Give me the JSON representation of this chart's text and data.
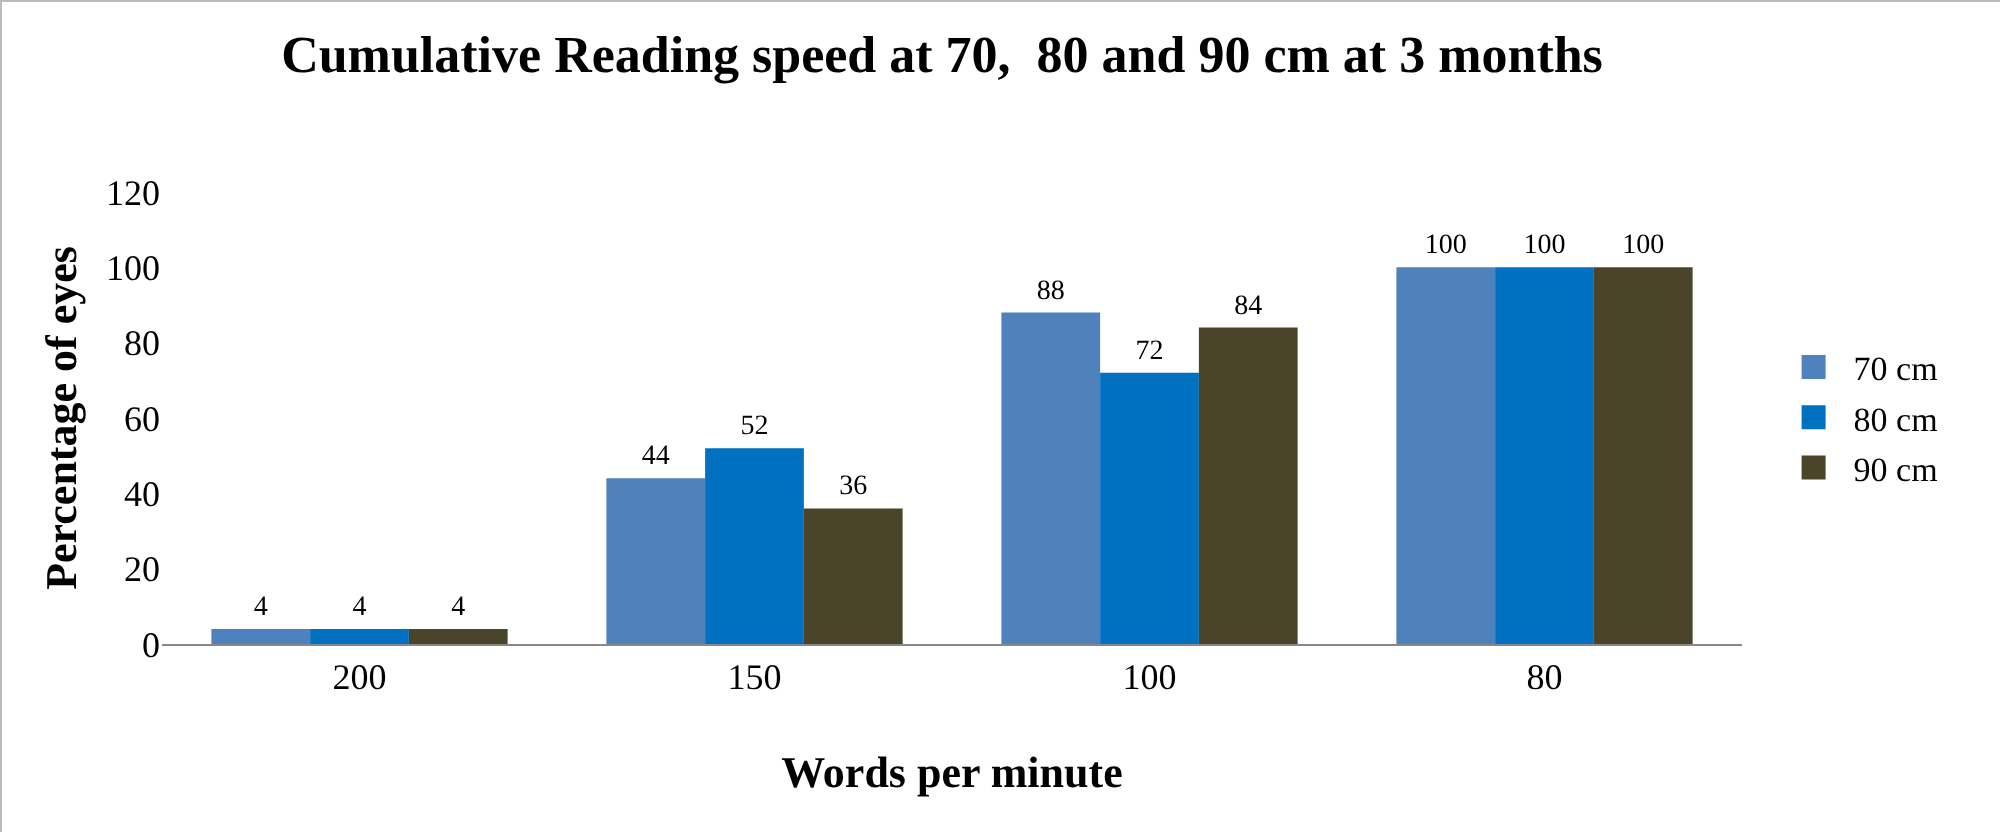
{
  "chart_data": {
    "type": "bar",
    "title": "Cumulative Reading speed at 70,  80 and 90 cm at 3 months",
    "xlabel": "Words per minute",
    "ylabel": "Percentage of eyes",
    "categories": [
      "200",
      "150",
      "100",
      "80"
    ],
    "series": [
      {
        "name": "70 cm",
        "color": "#4f81bd",
        "values": [
          4,
          44,
          88,
          100
        ]
      },
      {
        "name": "80 cm",
        "color": "#0070c0",
        "values": [
          4,
          52,
          72,
          100
        ]
      },
      {
        "name": "90 cm",
        "color": "#4a452a",
        "values": [
          4,
          36,
          84,
          100
        ]
      }
    ],
    "ylim": [
      0,
      120
    ],
    "yticks": [
      0,
      20,
      40,
      60,
      80,
      100,
      120
    ],
    "grid": false,
    "legend": "right",
    "data_labels": true
  }
}
